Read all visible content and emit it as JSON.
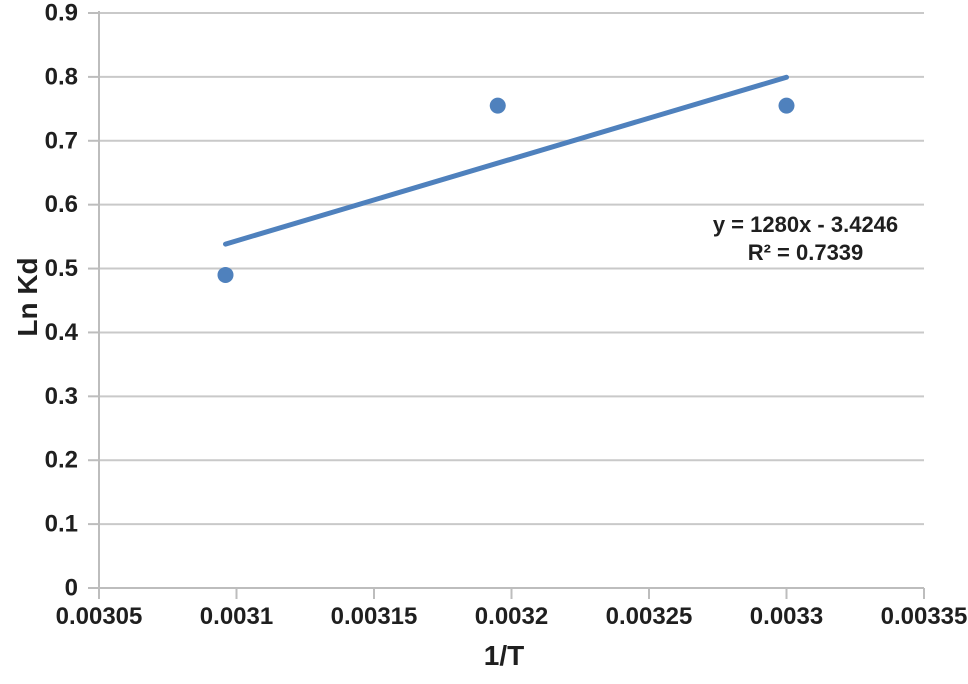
{
  "chart_data": {
    "type": "scatter",
    "title": "",
    "xlabel": "1/T",
    "ylabel": "Ln Kd",
    "x": [
      0.003096,
      0.003195,
      0.0033
    ],
    "y": [
      0.49,
      0.755,
      0.755
    ],
    "xlim": [
      0.00305,
      0.00335
    ],
    "ylim": [
      0,
      0.9
    ],
    "x_tick_labels": [
      "0.00305",
      "0.0031",
      "0.00315",
      "0.0032",
      "0.00325",
      "0.0033",
      "0.00335"
    ],
    "y_tick_labels": [
      "0",
      "0.1",
      "0.2",
      "0.3",
      "0.4",
      "0.5",
      "0.6",
      "0.7",
      "0.8",
      "0.9"
    ],
    "grid": "horizontal",
    "legend": "none",
    "trendline": {
      "slope": 1280,
      "intercept": -3.4246,
      "x_start": 0.003096,
      "x_end": 0.0033,
      "equation_label": "y = 1280x - 3.4246",
      "r_squared_label": "R² = 0.7339"
    },
    "colors": {
      "series": "#4F81BD",
      "gridline": "#C9C9C9",
      "axis": "#BDBDBD",
      "text": "#1f1f1f"
    }
  }
}
